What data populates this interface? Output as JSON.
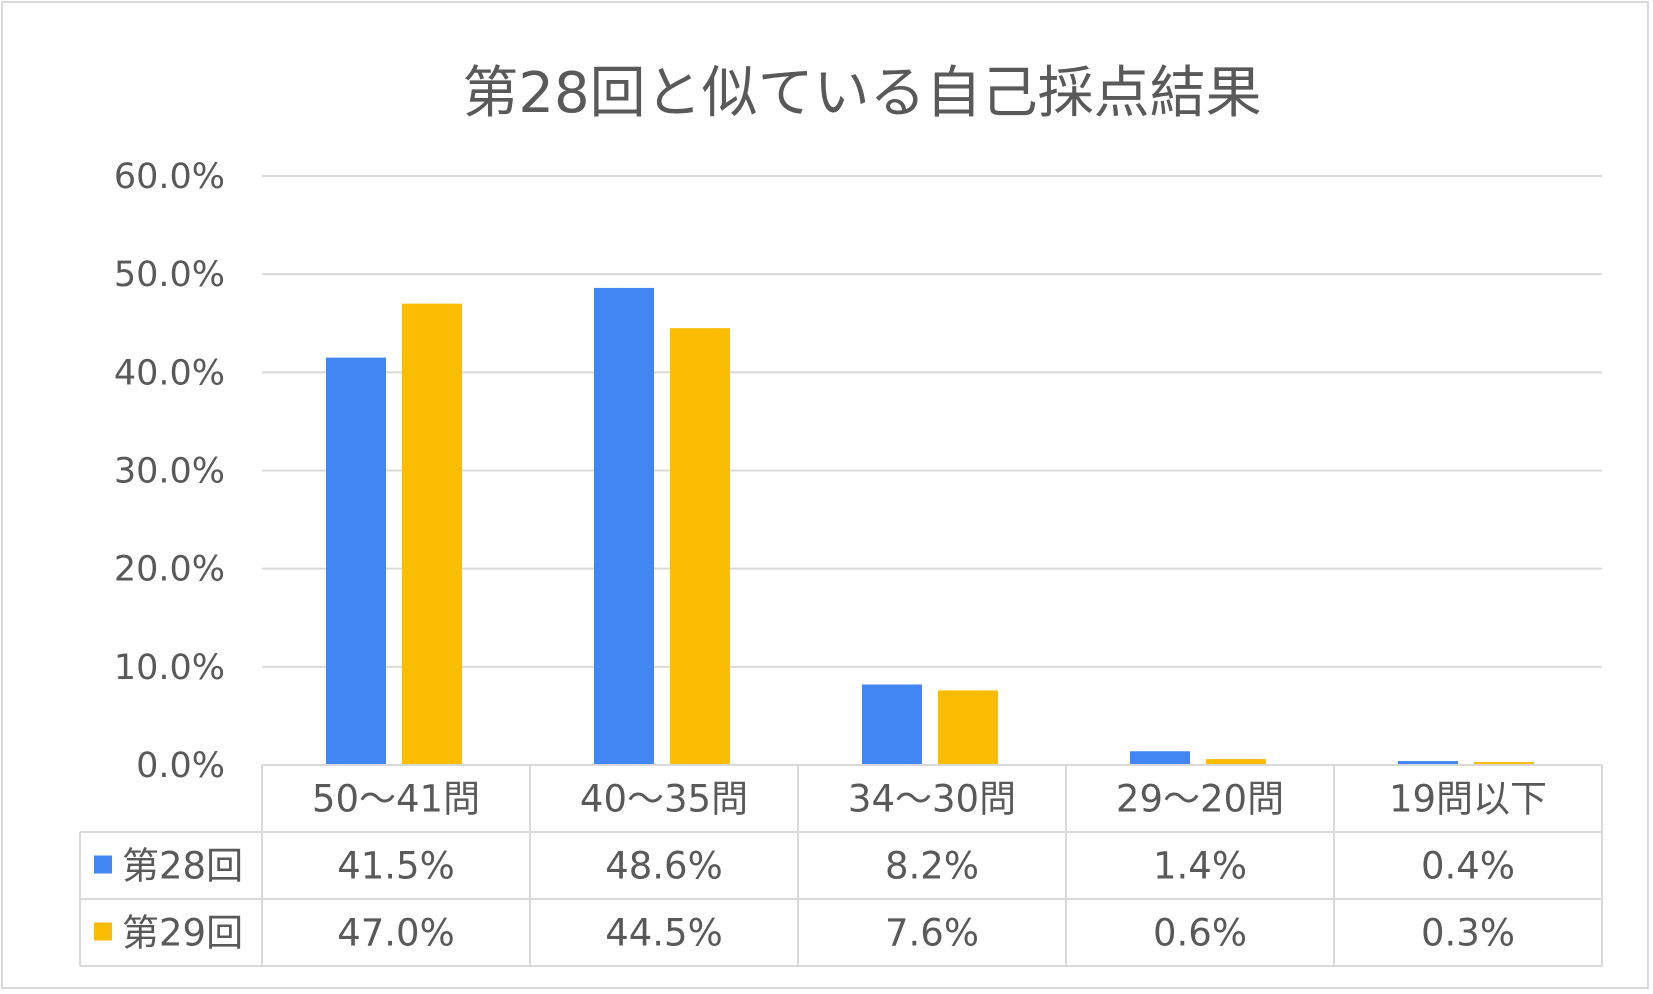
{
  "chart_data": {
    "type": "bar",
    "title": "第28回と似ている自己採点結果",
    "categories": [
      "50～41問",
      "40～35問",
      "34～30問",
      "29～20問",
      "19問以下"
    ],
    "series": [
      {
        "name": "第28回",
        "color": "#4286f4",
        "values": [
          41.5,
          48.6,
          8.2,
          1.4,
          0.4
        ],
        "labels": [
          "41.5%",
          "48.6%",
          "8.2%",
          "1.4%",
          "0.4%"
        ]
      },
      {
        "name": "第29回",
        "color": "#fbbc04",
        "values": [
          47.0,
          44.5,
          7.6,
          0.6,
          0.3
        ],
        "labels": [
          "47.0%",
          "44.5%",
          "7.6%",
          "0.6%",
          "0.3%"
        ]
      }
    ],
    "ylim": [
      0,
      60
    ],
    "yticks": [
      "0.0%",
      "10.0%",
      "20.0%",
      "30.0%",
      "40.0%",
      "50.0%",
      "60.0%"
    ],
    "grid": true,
    "legend": "data-table",
    "data_table": true
  }
}
